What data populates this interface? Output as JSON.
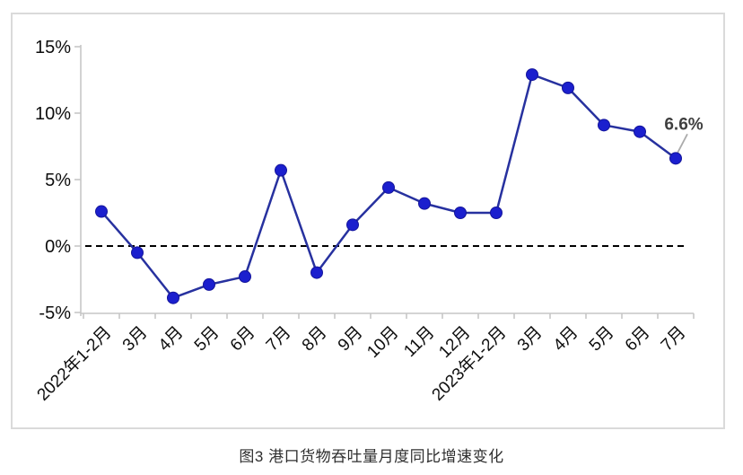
{
  "chart_data": {
    "type": "line",
    "caption": "图3 港口货物吞吐量月度同比增速变化",
    "categories": [
      "2022年1-2月",
      "3月",
      "4月",
      "5月",
      "6月",
      "7月",
      "8月",
      "9月",
      "10月",
      "11月",
      "12月",
      "2023年1-2月",
      "3月",
      "4月",
      "5月",
      "6月",
      "7月"
    ],
    "series": [
      {
        "values": [
          2.6,
          -0.5,
          -3.9,
          -2.9,
          -2.3,
          5.7,
          -2.0,
          1.6,
          4.4,
          3.2,
          2.5,
          2.5,
          12.9,
          11.9,
          9.1,
          8.6,
          6.6
        ]
      }
    ],
    "ylim": [
      -5,
      15
    ],
    "yticks": [
      15,
      10,
      5,
      0,
      -5
    ],
    "ytick_labels": [
      "15%",
      "10%",
      "5%",
      "0%",
      "-5%"
    ],
    "xlabel": "",
    "ylabel": "",
    "grid": false,
    "legend": "none",
    "zero_line_dashed": true,
    "last_point_label": "6.6%"
  },
  "colors": {
    "series_line": "#27319f",
    "marker_fill": "#1b1fce",
    "marker_stroke": "#14159b",
    "zero_line": "#000000",
    "axis": "#c6c6c6",
    "tick_label": "#0d0d0d",
    "annotation_text": "#3f3f3f",
    "annotation_leader": "#ababab",
    "frame_border": "#dadada",
    "caption_text": "#2e2e2e"
  }
}
